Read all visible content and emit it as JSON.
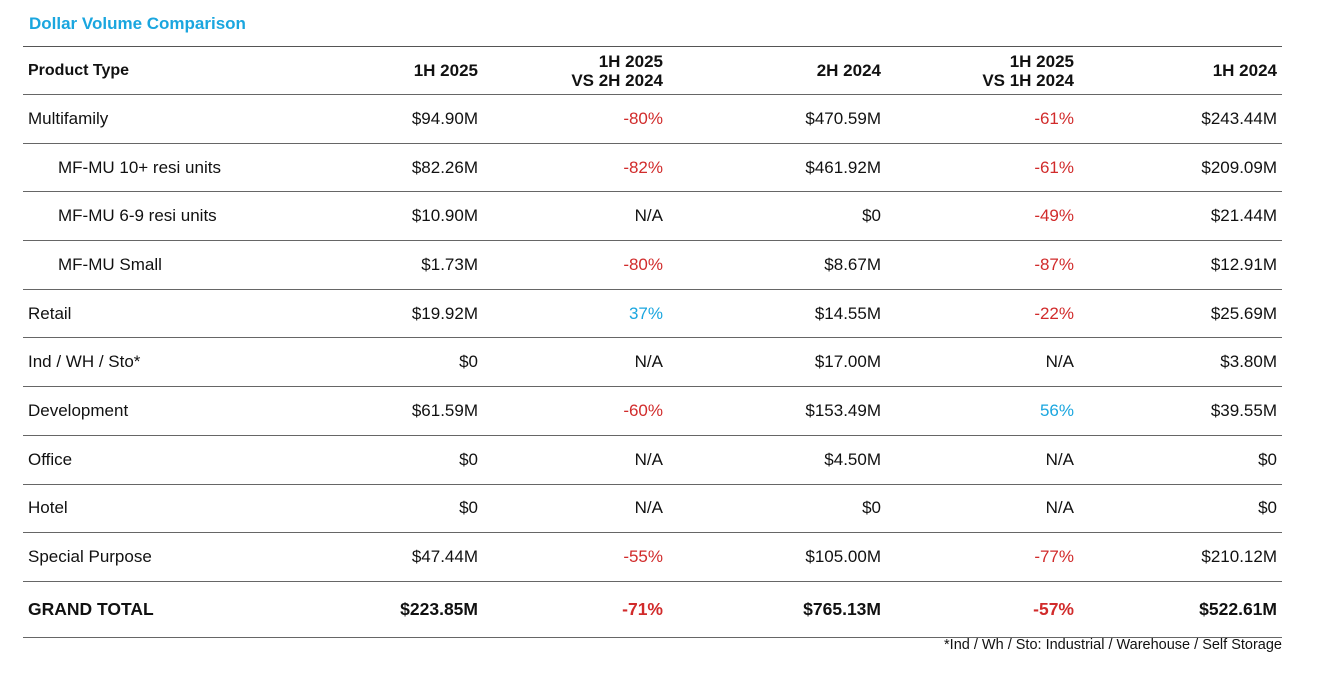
{
  "title": "Dollar Volume Comparison",
  "colors": {
    "title": "#1aa6df",
    "negative": "#d12b2b",
    "positive": "#1aa6df"
  },
  "headers": {
    "product_type": "Product Type",
    "h1_2025": "1H 2025",
    "vs_2h_line1": "1H 2025",
    "vs_2h_line2": "VS 2H 2024",
    "h2_2024": "2H 2024",
    "vs_1h_line1": "1H 2025",
    "vs_1h_line2": "VS 1H 2024",
    "h1_2024": "1H 2024"
  },
  "rows": [
    {
      "type": "Multifamily",
      "h1_2025": "$94.90M",
      "vs_2h": "-80%",
      "h2_2024": "$470.59M",
      "vs_1h": "-61%",
      "h1_2024": "$243.44M"
    },
    {
      "type": "MF-MU 10+ resi units",
      "h1_2025": "$82.26M",
      "vs_2h": "-82%",
      "h2_2024": "$461.92M",
      "vs_1h": "-61%",
      "h1_2024": "$209.09M"
    },
    {
      "type": "MF-MU 6-9 resi units",
      "h1_2025": "$10.90M",
      "vs_2h": "N/A",
      "h2_2024": "$0",
      "vs_1h": "-49%",
      "h1_2024": "$21.44M"
    },
    {
      "type": "MF-MU Small",
      "h1_2025": "$1.73M",
      "vs_2h": "-80%",
      "h2_2024": "$8.67M",
      "vs_1h": "-87%",
      "h1_2024": "$12.91M"
    },
    {
      "type": "Retail",
      "h1_2025": "$19.92M",
      "vs_2h": "37%",
      "h2_2024": "$14.55M",
      "vs_1h": "-22%",
      "h1_2024": "$25.69M"
    },
    {
      "type": "Ind / WH / Sto*",
      "h1_2025": "$0",
      "vs_2h": "N/A",
      "h2_2024": "$17.00M",
      "vs_1h": "N/A",
      "h1_2024": "$3.80M"
    },
    {
      "type": "Development",
      "h1_2025": "$61.59M",
      "vs_2h": "-60%",
      "h2_2024": "$153.49M",
      "vs_1h": "56%",
      "h1_2024": "$39.55M"
    },
    {
      "type": "Office",
      "h1_2025": "$0",
      "vs_2h": "N/A",
      "h2_2024": "$4.50M",
      "vs_1h": "N/A",
      "h1_2024": "$0"
    },
    {
      "type": "Hotel",
      "h1_2025": "$0",
      "vs_2h": "N/A",
      "h2_2024": "$0",
      "vs_1h": "N/A",
      "h1_2024": "$0"
    },
    {
      "type": "Special Purpose",
      "h1_2025": "$47.44M",
      "vs_2h": "-55%",
      "h2_2024": "$105.00M",
      "vs_1h": "-77%",
      "h1_2024": "$210.12M"
    }
  ],
  "total": {
    "type": "GRAND TOTAL",
    "h1_2025": "$223.85M",
    "vs_2h": "-71%",
    "h2_2024": "$765.13M",
    "vs_1h": "-57%",
    "h1_2024": "$522.61M"
  },
  "footnote": "*Ind / Wh / Sto: Industrial / Warehouse / Self Storage"
}
